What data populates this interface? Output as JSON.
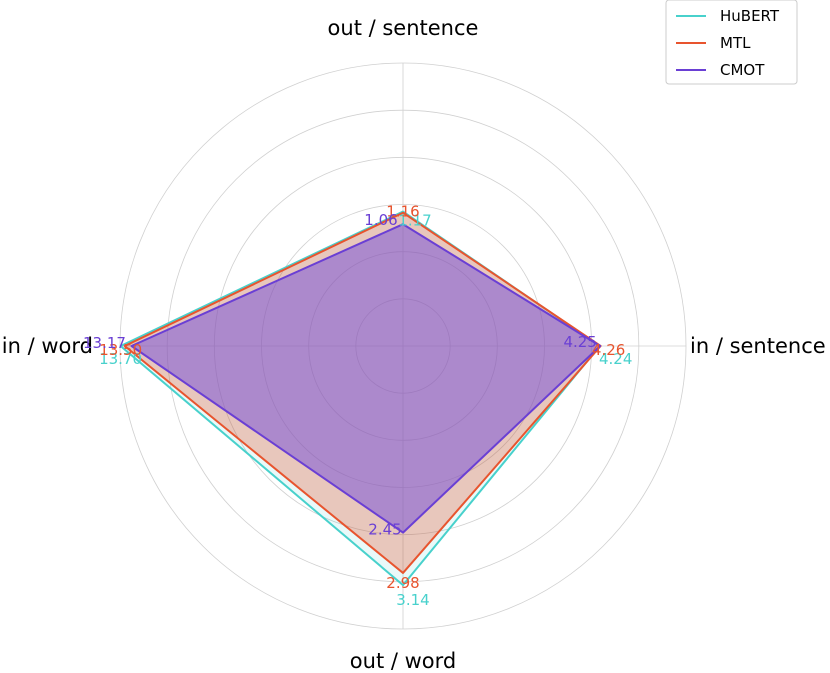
{
  "chart_data": {
    "type": "radar",
    "axes": [
      "out / sentence",
      "in / sentence",
      "out / word",
      "in / word"
    ],
    "series": [
      {
        "name": "HuBERT",
        "color": "#48d1cc",
        "fill": "#48d1cc",
        "fill_opacity": 0.12,
        "values": [
          1.17,
          4.24,
          3.14,
          13.7
        ],
        "labels": [
          "1.17",
          "4.24",
          "3.14",
          "13.70"
        ]
      },
      {
        "name": "MTL",
        "color": "#e8542e",
        "fill": "#e8542e",
        "fill_opacity": 0.3,
        "values": [
          1.16,
          4.26,
          2.98,
          13.5
        ],
        "labels": [
          "1.16",
          "4.26",
          "2.98",
          "13.50"
        ]
      },
      {
        "name": "CMOT",
        "color": "#6a3fd4",
        "fill": "#7a55d8",
        "fill_opacity": 0.55,
        "values": [
          1.06,
          4.25,
          2.45,
          13.17
        ],
        "labels": [
          "1.06",
          "4.25",
          "2.45",
          "13.17"
        ]
      }
    ],
    "legend_position": "top-right",
    "grid": true,
    "ring_count": 6
  }
}
